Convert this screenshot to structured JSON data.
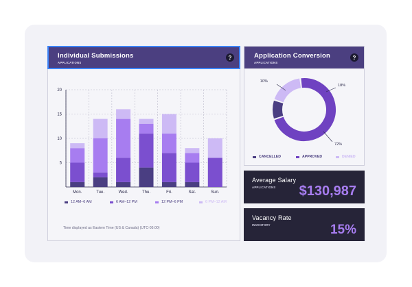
{
  "submissions": {
    "title": "Individual Submissions",
    "subtitle": "APPLICATIONS",
    "help_label": "?",
    "footnote": "Time displayed as Eastern Time (US & Canada) (UTC-05:00)",
    "chart_data": {
      "type": "bar",
      "stacked": true,
      "categories": [
        "Mon.",
        "Tue.",
        "Wed.",
        "Thu.",
        "Fri.",
        "Sat.",
        "Sun."
      ],
      "ylim": [
        0,
        20
      ],
      "yticks": [
        20,
        15,
        10,
        5
      ],
      "grid": true,
      "legend_position": "bottom",
      "series": [
        {
          "name": "12 AM–6 AM",
          "color": "#4a3e82",
          "values": [
            1,
            2,
            1,
            4,
            1,
            1,
            0
          ]
        },
        {
          "name": "6 AM–12 PM",
          "color": "#7b4fcf",
          "values": [
            4,
            1,
            5,
            7,
            6,
            4,
            6
          ]
        },
        {
          "name": "12 PM–6 PM",
          "color": "#a77df0",
          "values": [
            3,
            7,
            8,
            2,
            4,
            2,
            0
          ]
        },
        {
          "name": "6 PM–12 AM",
          "color": "#cdbaf5",
          "values": [
            1,
            4,
            2,
            1,
            4,
            1,
            4
          ]
        }
      ]
    }
  },
  "conversion": {
    "title": "Application Conversion",
    "subtitle": "APPLICATIONS",
    "help_label": "?",
    "chart_data": {
      "type": "pie",
      "donut": true,
      "legend_position": "bottom",
      "slices": [
        {
          "name": "CANCELLED",
          "value": 10,
          "label": "10%",
          "color": "#4a3e82"
        },
        {
          "name": "APPROVED",
          "value": 72,
          "label": "72%",
          "color": "#6f42c1"
        },
        {
          "name": "DENIED",
          "value": 18,
          "label": "18%",
          "color": "#cdbaf5"
        }
      ]
    }
  },
  "salary": {
    "title": "Average Salary",
    "subtitle": "APPLICATIONS",
    "value": "$130,987"
  },
  "vacancy": {
    "title": "Vacancy Rate",
    "subtitle": "INVENTORY",
    "value": "15%"
  },
  "colors": {
    "header_bg": "#4b3f80",
    "dark_card_bg": "#262438",
    "accent": "#a77df0",
    "selection_outline": "#3b82f6"
  }
}
